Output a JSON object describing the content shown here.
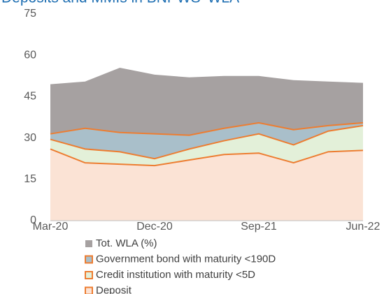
{
  "chart_data": {
    "type": "area",
    "title": "Deposits and MMIs in BNPWS' WLA",
    "x": [
      "Mar-20",
      null,
      null,
      "Dec-20",
      null,
      null,
      "Sep-21",
      null,
      null,
      "Jun-22"
    ],
    "ylim": [
      0,
      75
    ],
    "yticks": [
      0,
      15,
      30,
      45,
      60,
      75
    ],
    "series": [
      {
        "name": "Tot. WLA (%)",
        "color": "#a6a1a1",
        "values": [
          49.5,
          50.5,
          55.5,
          53,
          52,
          52.5,
          52.5,
          51,
          50.5,
          50
        ]
      },
      {
        "name": "Government bond with maturity <190D",
        "color": "#a9bfca",
        "line_color": "#ed7d31",
        "stack": true,
        "values": [
          2,
          7.5,
          7,
          9,
          5,
          4.5,
          4,
          5.5,
          2,
          1
        ]
      },
      {
        "name": "Credit institution with maturity <5D",
        "color": "#e3f0d9",
        "line_color": "#ed7d31",
        "stack": true,
        "values": [
          3.5,
          5,
          4.5,
          2.5,
          4,
          5,
          7,
          6.5,
          7.5,
          9
        ]
      },
      {
        "name": "Deposit",
        "color": "#fbe3d5",
        "line_color": "#ed7d31",
        "stack": true,
        "values": [
          26,
          21,
          20.5,
          20,
          22,
          24,
          24.5,
          21,
          25,
          25.5
        ]
      }
    ]
  }
}
